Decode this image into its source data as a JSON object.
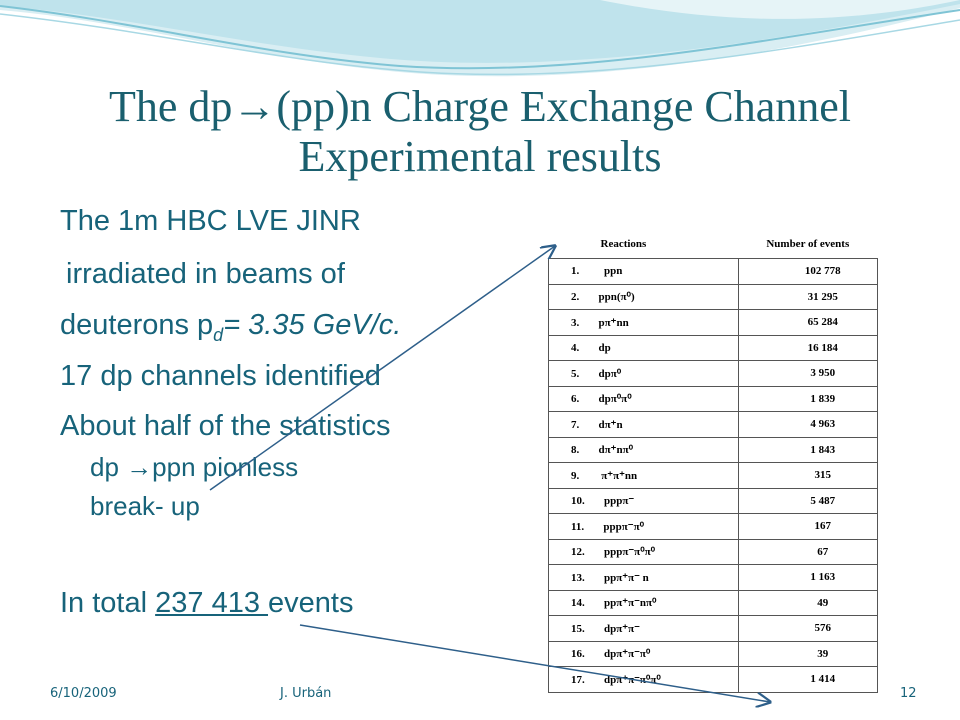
{
  "title": {
    "line1": "The dp→(pp)n Charge Exchange Channel",
    "line2": "Experimental results"
  },
  "body": {
    "l1": "The 1m HBC LVE JINR",
    "l2": "irradiated in beams of",
    "l3_pre": "deuterons p",
    "l3_sub": "d",
    "l3_post": "= 3.35 GeV/c.",
    "l4": "17 dp channels identified",
    "l5": "About half of the statistics",
    "l6": "dp →ppn pionless",
    "l7": "break- up",
    "l8_pre": "In total ",
    "l8_num": "237 413 ",
    "l8_post": "events"
  },
  "table": {
    "header": {
      "reactions": "Reactions",
      "events": "Number  of events"
    },
    "rows": [
      {
        "reaction": "1.         ppn",
        "events": "102 778"
      },
      {
        "reaction": "2.       ppn(π⁰)",
        "events": "31  295"
      },
      {
        "reaction": "3.       pπ⁺nn",
        "events": "65 284"
      },
      {
        "reaction": "4.       dp",
        "events": "16 184"
      },
      {
        "reaction": "5.       dpπ⁰",
        "events": "3 950"
      },
      {
        "reaction": "6.       dpπ⁰π⁰",
        "events": "1 839"
      },
      {
        "reaction": "7.       dπ⁺n",
        "events": "4 963"
      },
      {
        "reaction": "8.       dπ⁺nπ⁰",
        "events": "1 843"
      },
      {
        "reaction": "9.        π⁺π⁺nn",
        "events": "315"
      },
      {
        "reaction": "10.       pppπ⁻",
        "events": "5 487"
      },
      {
        "reaction": "11.       pppπ⁻π⁰",
        "events": "167"
      },
      {
        "reaction": "12.       pppπ⁻π⁰π⁰",
        "events": "67"
      },
      {
        "reaction": "13.       ppπ⁺π⁻ n",
        "events": "1 163"
      },
      {
        "reaction": "14.       ppπ⁺π⁻nπ⁰",
        "events": "49"
      },
      {
        "reaction": "15.       dpπ⁺π⁻",
        "events": "576"
      },
      {
        "reaction": "16.       dpπ⁺π⁻π⁰",
        "events": "39"
      },
      {
        "reaction": "17.       dpπ⁺π⁻π⁰π⁰",
        "events": "1 414"
      }
    ]
  },
  "footer": {
    "date": "6/10/2009",
    "author": "J. Urbán",
    "page": "12"
  },
  "colors": {
    "text": "#17637a",
    "title": "#1a5f6e",
    "arrow": "#2e5f8a"
  }
}
